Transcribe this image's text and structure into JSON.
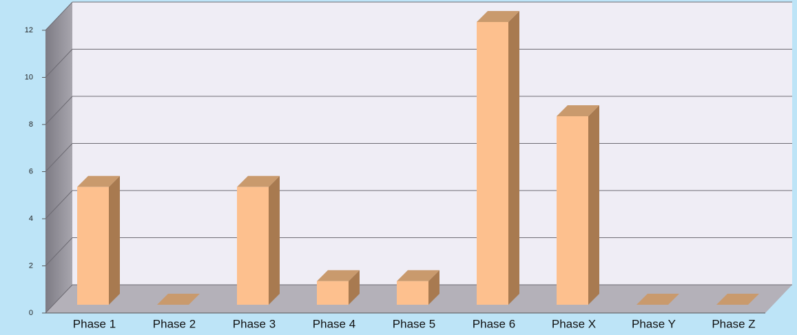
{
  "chart_data": {
    "type": "bar3d",
    "categories": [
      "Phase 1",
      "Phase 2",
      "Phase 3",
      "Phase 4",
      "Phase 5",
      "Phase 6",
      "Phase X",
      "Phase Y",
      "Phase Z"
    ],
    "values": [
      5,
      0,
      5,
      1,
      1,
      12,
      8,
      0,
      0
    ],
    "color": "#fdc08e",
    "ylim": [
      0,
      12
    ],
    "yticks": [
      0,
      2,
      4,
      6,
      8,
      10,
      12
    ],
    "grid": true
  }
}
